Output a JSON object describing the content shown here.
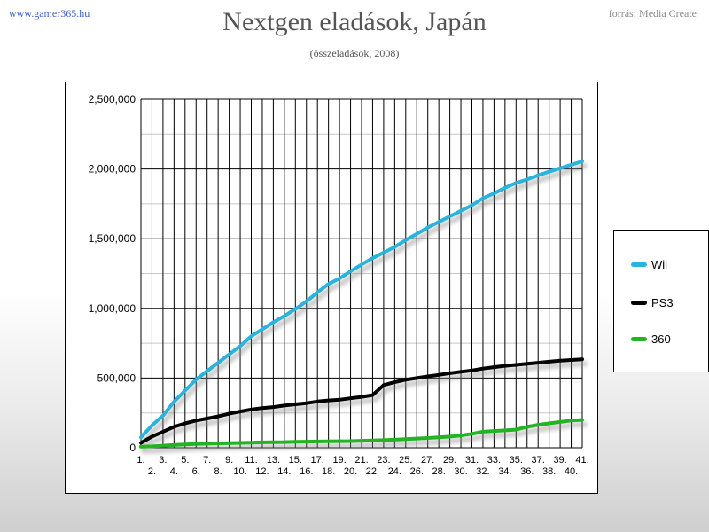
{
  "header": {
    "site": "www.gamer365.hu",
    "source": "forrás: Media Create"
  },
  "chart_data": {
    "type": "line",
    "title": "Nextgen eladások, Japán",
    "subtitle": "(összeladások, 2008)",
    "xlabel": "",
    "ylabel": "",
    "ylim": [
      0,
      2500000
    ],
    "yticks": [
      0,
      500000,
      1000000,
      1500000,
      2000000,
      2500000
    ],
    "ytick_labels": [
      "0",
      "500,000",
      "1,000,000",
      "1,500,000",
      "2,000,000",
      "2,500,000"
    ],
    "x": [
      "1.",
      "2.",
      "3.",
      "4.",
      "5.",
      "6.",
      "7.",
      "8.",
      "9.",
      "10.",
      "11.",
      "12.",
      "13.",
      "14.",
      "15.",
      "16.",
      "17.",
      "18.",
      "19.",
      "20.",
      "21.",
      "22.",
      "23.",
      "24.",
      "25.",
      "26.",
      "27.",
      "28.",
      "29.",
      "30.",
      "31.",
      "32.",
      "33.",
      "34.",
      "35.",
      "36.",
      "37.",
      "38.",
      "39.",
      "40.",
      "41."
    ],
    "grid": true,
    "legend_position": "right",
    "series": [
      {
        "name": "Wii",
        "color": "#2ab4dc",
        "values": [
          75000,
          160000,
          230000,
          330000,
          410000,
          490000,
          550000,
          610000,
          670000,
          730000,
          800000,
          850000,
          900000,
          945000,
          995000,
          1050000,
          1115000,
          1175000,
          1215000,
          1265000,
          1315000,
          1360000,
          1400000,
          1440000,
          1490000,
          1535000,
          1580000,
          1620000,
          1660000,
          1700000,
          1740000,
          1790000,
          1825000,
          1865000,
          1900000,
          1925000,
          1955000,
          1980000,
          2005000,
          2030000,
          2055000
        ]
      },
      {
        "name": "PS3",
        "color": "#000000",
        "values": [
          35000,
          80000,
          115000,
          150000,
          175000,
          195000,
          210000,
          225000,
          245000,
          260000,
          275000,
          285000,
          292000,
          303000,
          312000,
          320000,
          332000,
          340000,
          345000,
          355000,
          365000,
          378000,
          450000,
          470000,
          488000,
          500000,
          512000,
          523000,
          535000,
          545000,
          555000,
          568000,
          578000,
          588000,
          595000,
          603000,
          610000,
          618000,
          625000,
          630000,
          635000
        ]
      },
      {
        "name": "360",
        "color": "#22b422",
        "values": [
          8000,
          10000,
          15000,
          20000,
          24000,
          27000,
          29000,
          32000,
          33000,
          35000,
          37000,
          39000,
          40000,
          41000,
          43000,
          44000,
          45000,
          46000,
          47000,
          48000,
          50000,
          52000,
          55000,
          58000,
          62000,
          66000,
          70000,
          75000,
          80000,
          88000,
          100000,
          115000,
          120000,
          125000,
          130000,
          150000,
          165000,
          175000,
          185000,
          195000,
          200000
        ]
      }
    ]
  }
}
